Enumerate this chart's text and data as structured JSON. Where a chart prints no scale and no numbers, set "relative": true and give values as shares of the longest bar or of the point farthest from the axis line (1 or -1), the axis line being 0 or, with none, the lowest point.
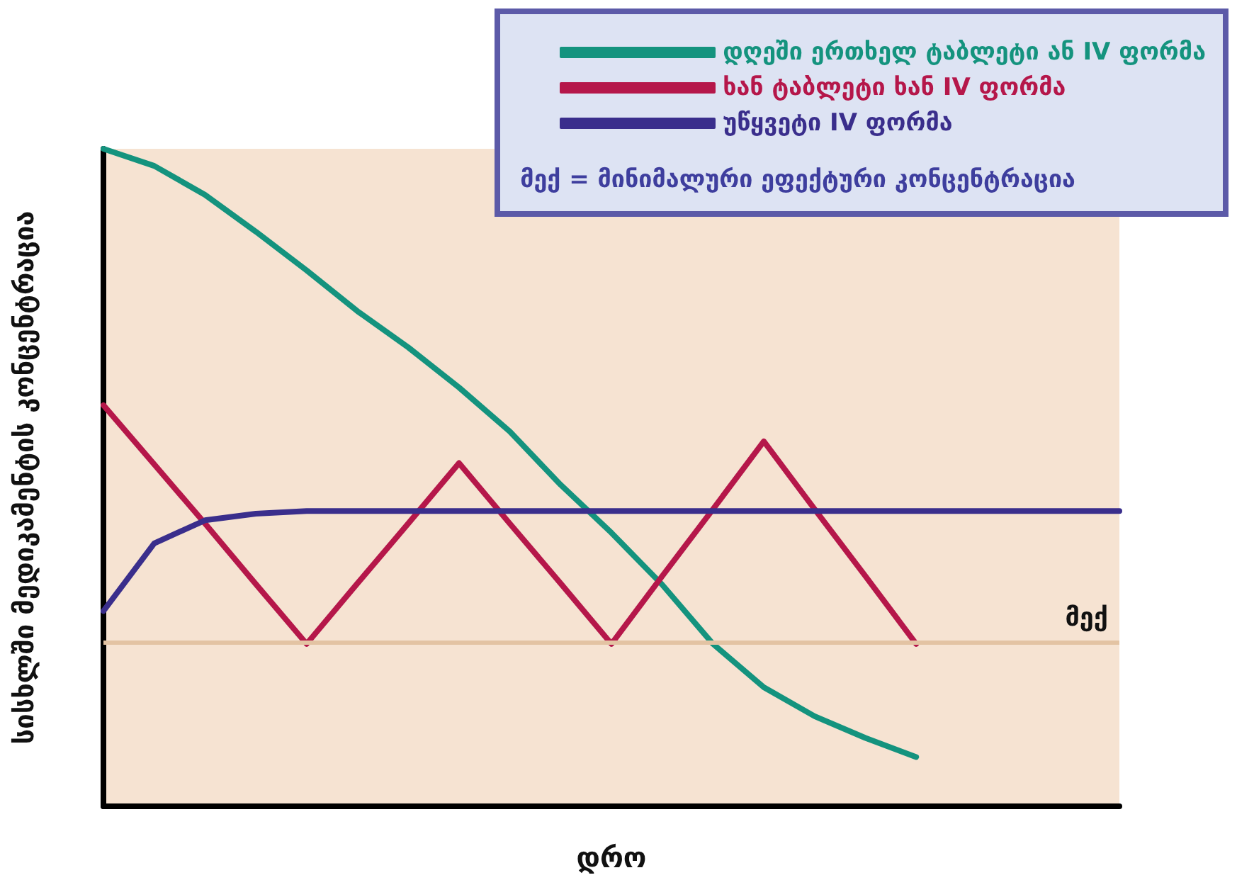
{
  "chart_data": {
    "type": "line",
    "relative": true,
    "xlabel": "დრო",
    "ylabel": "სისხლში მედიკამენტის კონცენტრაცია",
    "categories": [
      null,
      null,
      null,
      null,
      null,
      null,
      null,
      null,
      null,
      null,
      null,
      null,
      null,
      null,
      null,
      null,
      null,
      null,
      null,
      null,
      null
    ],
    "series": [
      {
        "name": "დღეში ერთხელ ტაბლეტი ან IV ფორმა",
        "color": "#14937e",
        "values": [
          1.0,
          0.974,
          0.93,
          0.874,
          0.815,
          0.753,
          0.698,
          0.637,
          0.57,
          0.489,
          0.416,
          0.337,
          0.247,
          0.181,
          0.137,
          0.104,
          0.075,
          null,
          null,
          null,
          null
        ]
      },
      {
        "name": "ხან ტაბლეტი ხან IV ფორმა",
        "color": "#b5174a",
        "values": [
          0.61,
          0.52,
          0.43,
          0.338,
          0.247,
          0.339,
          0.43,
          0.522,
          0.43,
          0.339,
          0.247,
          0.35,
          0.452,
          0.555,
          0.452,
          0.35,
          0.247,
          null,
          null,
          null,
          null
        ]
      },
      {
        "name": "უწყვეტი IV ფორმა",
        "color": "#3a2e8c",
        "values": [
          0.297,
          0.4,
          0.435,
          0.445,
          0.449,
          0.449,
          0.449,
          0.449,
          0.449,
          0.449,
          0.449,
          0.449,
          0.449,
          0.449,
          0.449,
          0.449,
          0.449,
          0.449,
          0.449,
          0.449,
          0.449
        ]
      }
    ],
    "ref_lines": [
      {
        "axis": "y",
        "value": 0.247,
        "label": "მექ",
        "color": "#e3c3a3"
      }
    ],
    "annotations": [
      "მექ = მინიმალური ეფექტური კონცენტრაცია"
    ],
    "legend": "top right",
    "marker": "none",
    "line_style": "solid",
    "grid": false
  }
}
